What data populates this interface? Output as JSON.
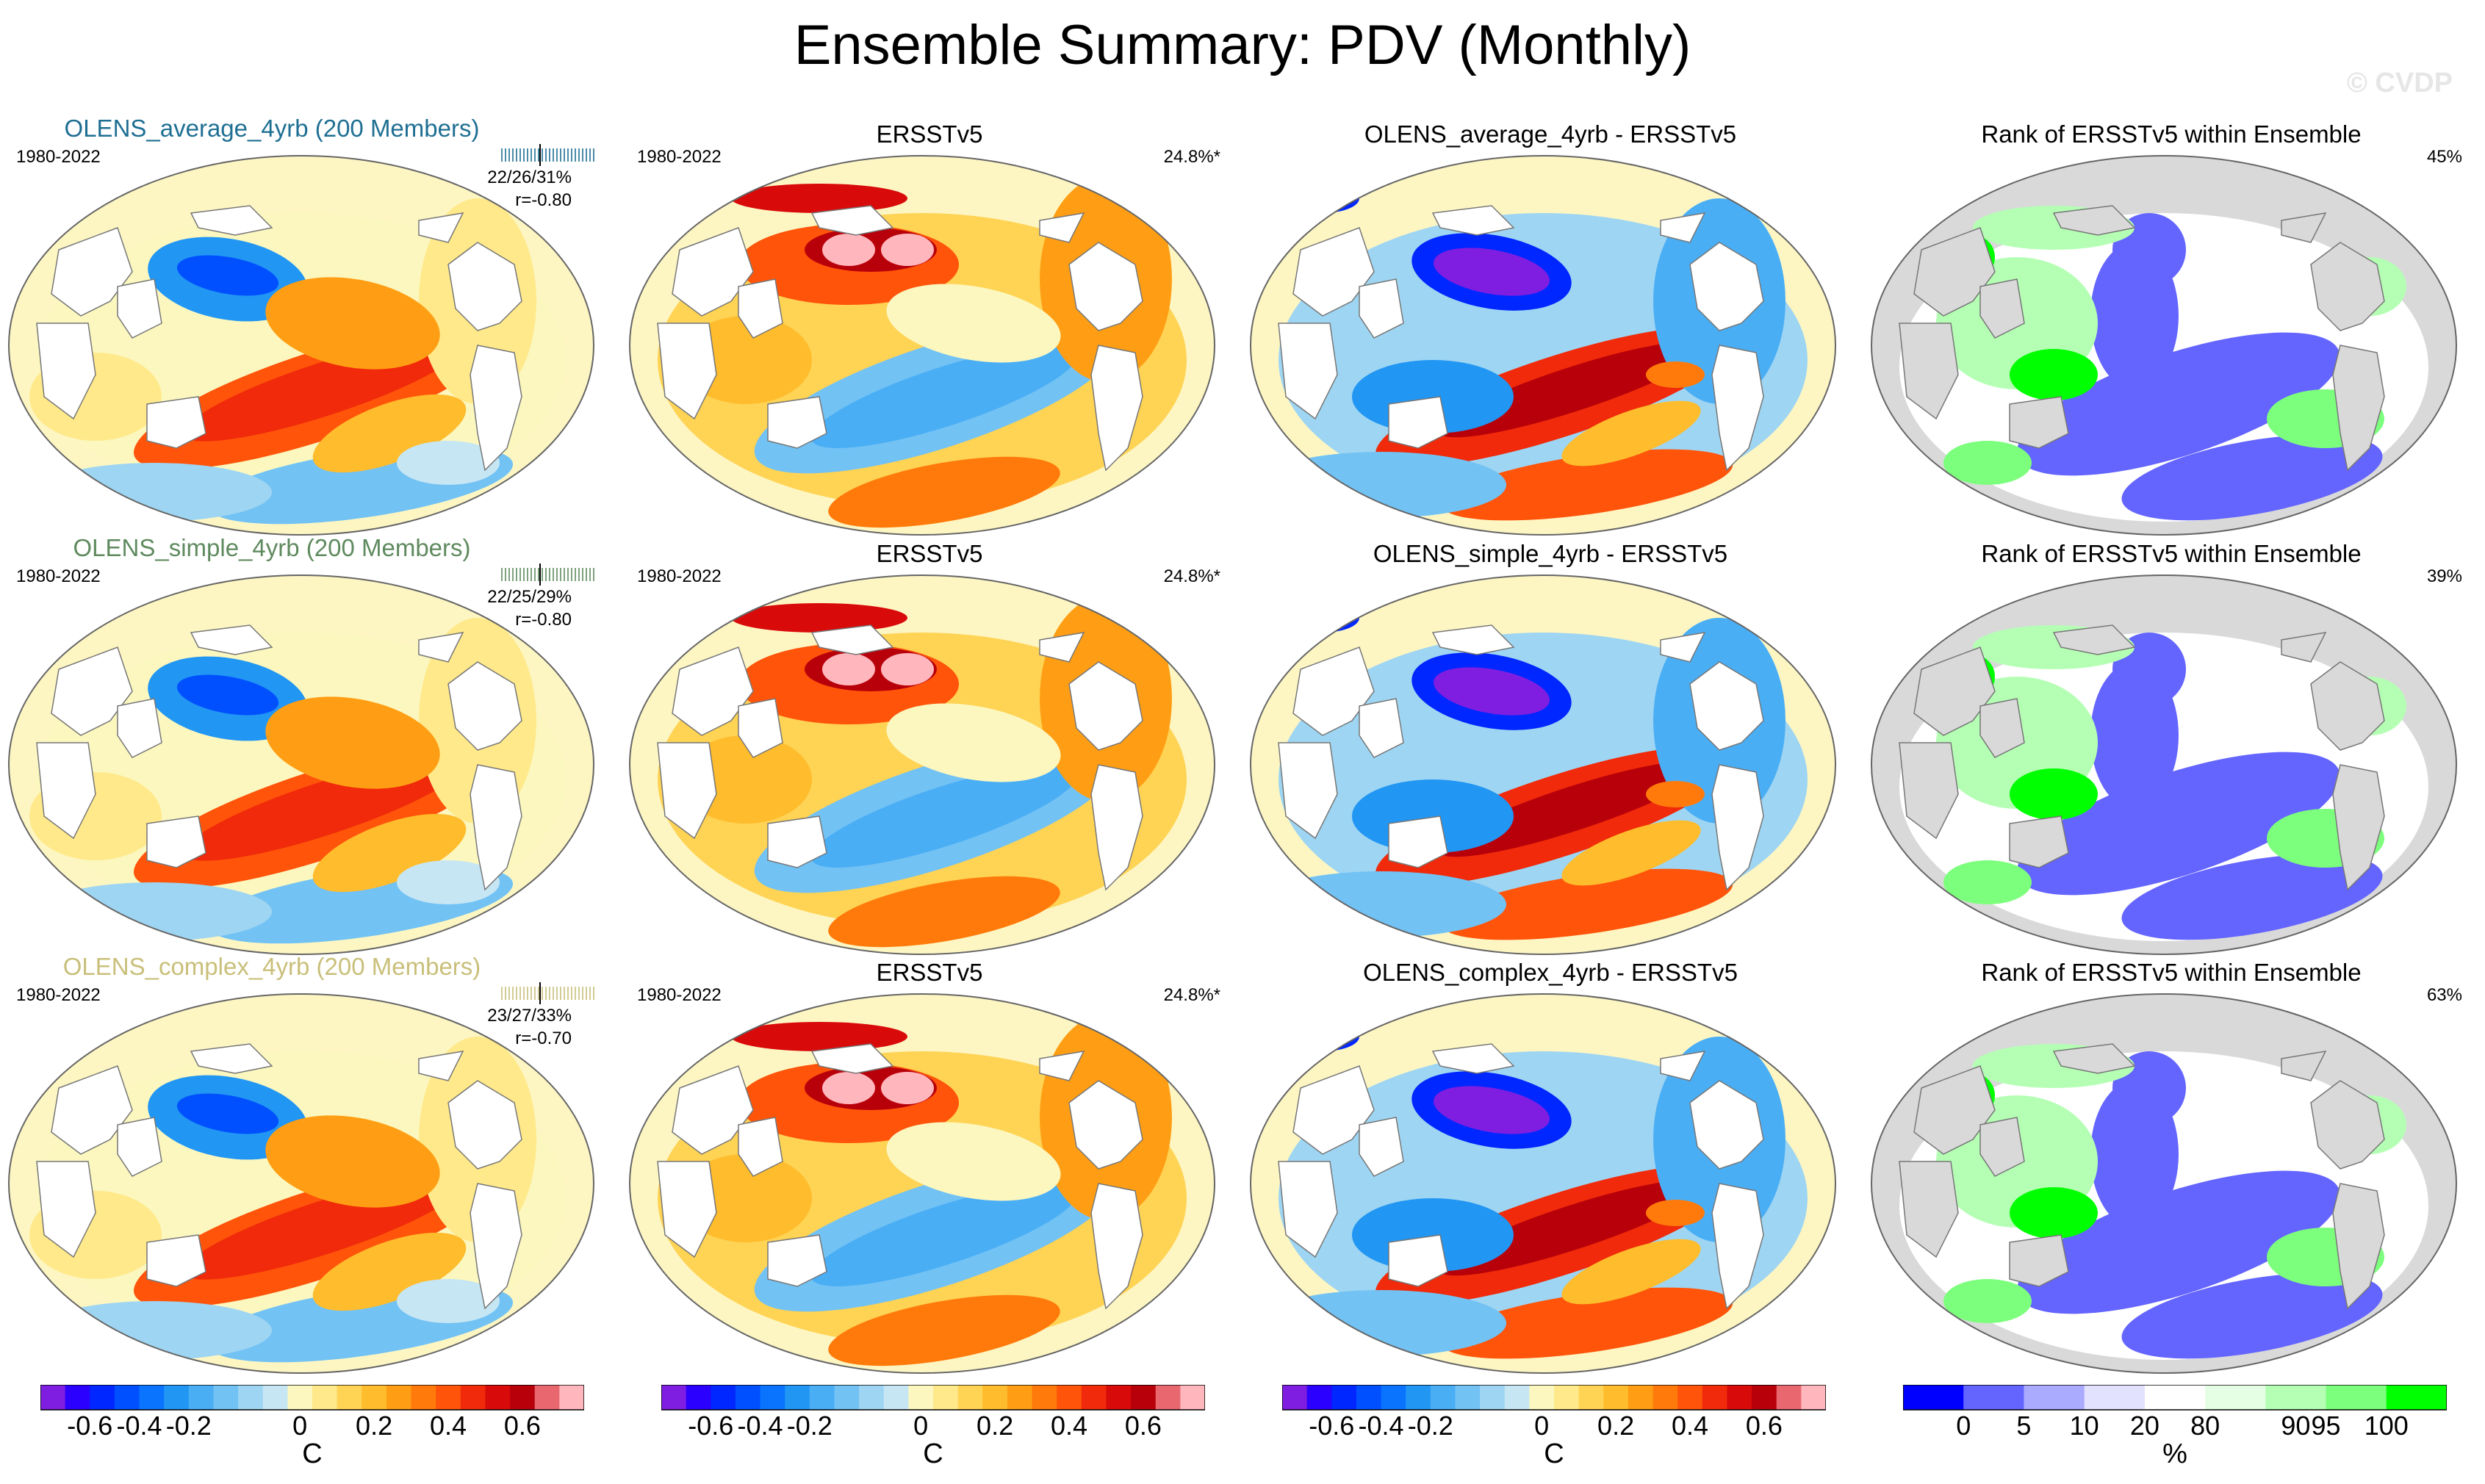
{
  "title": "Ensemble Summary: PDV (Monthly)",
  "watermark": "© CVDP",
  "colors": {
    "row_title": [
      "#1f6f93",
      "#5f8a5f",
      "#c9bf7a"
    ],
    "land": "#ffffff",
    "rank_land": "#d9d9d9",
    "ocean_bg": "#fdf6c3"
  },
  "rows": [
    {
      "member": {
        "title": "OLENS_average_4yrb (200 Members)",
        "period": "1980-2022",
        "stats": "22/26/31%",
        "corr": "r=-0.80"
      },
      "obs": {
        "title": "ERSSTv5",
        "period": "1980-2022",
        "pct": "24.8%*"
      },
      "diff": {
        "title": "OLENS_average_4yrb - ERSSTv5"
      },
      "rank": {
        "title": "Rank of ERSSTv5 within Ensemble",
        "pct": "45%"
      }
    },
    {
      "member": {
        "title": "OLENS_simple_4yrb (200 Members)",
        "period": "1980-2022",
        "stats": "22/25/29%",
        "corr": "r=-0.80"
      },
      "obs": {
        "title": "ERSSTv5",
        "period": "1980-2022",
        "pct": "24.8%*"
      },
      "diff": {
        "title": "OLENS_simple_4yrb - ERSSTv5"
      },
      "rank": {
        "title": "Rank of ERSSTv5 within Ensemble",
        "pct": "39%"
      }
    },
    {
      "member": {
        "title": "OLENS_complex_4yrb (200 Members)",
        "period": "1980-2022",
        "stats": "23/27/33%",
        "corr": "r=-0.70"
      },
      "obs": {
        "title": "ERSSTv5",
        "period": "1980-2022",
        "pct": "24.8%*"
      },
      "diff": {
        "title": "OLENS_complex_4yrb - ERSSTv5"
      },
      "rank": {
        "title": "Rank of ERSSTv5 within Ensemble",
        "pct": "63%"
      }
    }
  ],
  "colorbar_temp": {
    "colors": [
      "#7f1ee0",
      "#2b00ff",
      "#0027ff",
      "#0050ff",
      "#0a74ff",
      "#2196f3",
      "#4aaef5",
      "#72c2f4",
      "#9ed5f2",
      "#c6e6f4",
      "#fbf7bf",
      "#ffe98a",
      "#ffd354",
      "#ffbc2c",
      "#ff9e14",
      "#ff7a0a",
      "#ff540a",
      "#f02a0a",
      "#d90a0a",
      "#b8000a",
      "#e96870",
      "#ffb6bd"
    ],
    "labels": [
      "-0.6",
      "-0.4",
      "-0.2",
      "0",
      "0.2",
      "0.4",
      "0.6"
    ],
    "unit": "C"
  },
  "colorbar_rank": {
    "colors": [
      "#0000ff",
      "#6464ff",
      "#aaaaff",
      "#e2e2ff",
      "#ffffff",
      "#e4ffe4",
      "#b4ffb4",
      "#7cff7c",
      "#00ff00"
    ],
    "labels": [
      "0",
      "5",
      "10",
      "20",
      "80",
      "90",
      "95",
      "100"
    ],
    "unit": "%"
  },
  "chart_data": [
    {
      "type": "heatmap",
      "title": "OLENS_average_4yrb (200 Members)",
      "period": "1980-2022",
      "units": "C",
      "range": [
        -0.7,
        0.7
      ]
    },
    {
      "type": "heatmap",
      "title": "ERSSTv5",
      "period": "1980-2022",
      "units": "C",
      "range": [
        -0.7,
        0.7
      ]
    },
    {
      "type": "heatmap",
      "title": "OLENS_average_4yrb - ERSSTv5",
      "units": "C",
      "range": [
        -0.7,
        0.7
      ]
    },
    {
      "type": "heatmap",
      "title": "Rank of ERSSTv5 within Ensemble",
      "units": "%",
      "range": [
        0,
        100
      ]
    }
  ]
}
